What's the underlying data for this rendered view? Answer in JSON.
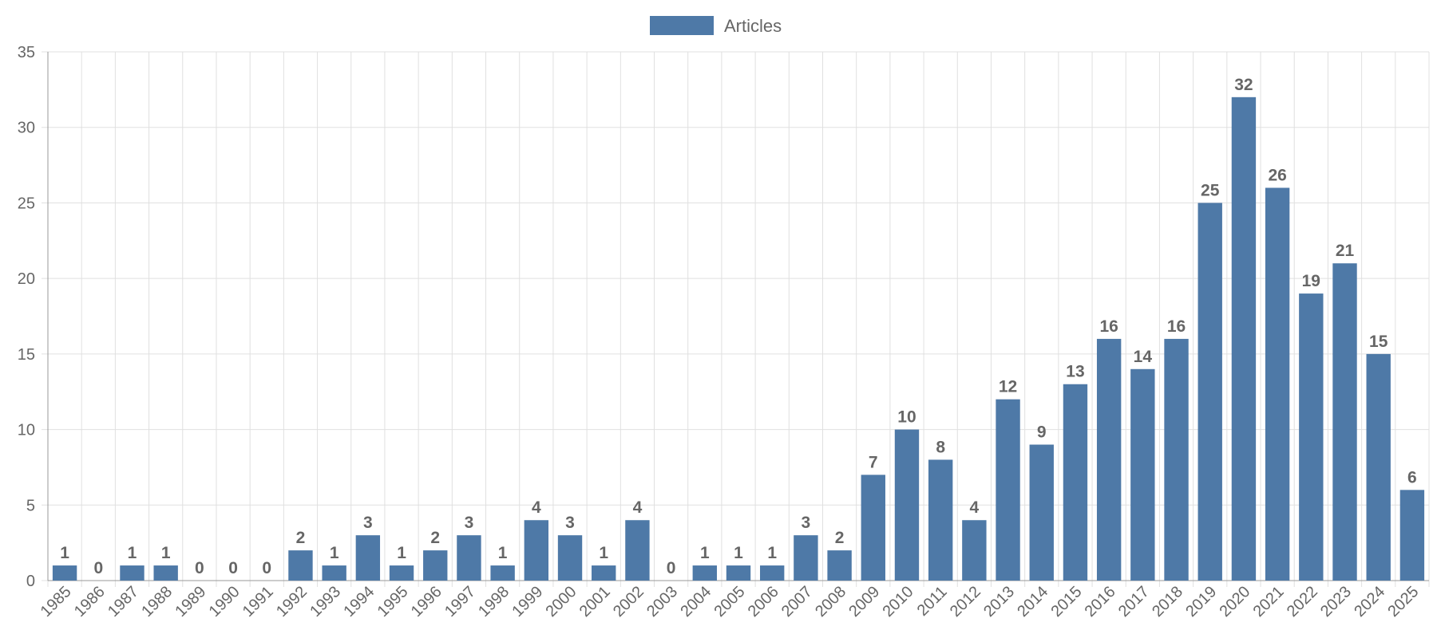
{
  "chart_data": {
    "type": "bar",
    "categories": [
      "1985",
      "1986",
      "1987",
      "1988",
      "1989",
      "1990",
      "1991",
      "1992",
      "1993",
      "1994",
      "1995",
      "1996",
      "1997",
      "1998",
      "1999",
      "2000",
      "2001",
      "2002",
      "2003",
      "2004",
      "2005",
      "2006",
      "2007",
      "2008",
      "2009",
      "2010",
      "2011",
      "2012",
      "2013",
      "2014",
      "2015",
      "2016",
      "2017",
      "2018",
      "2019",
      "2020",
      "2021",
      "2022",
      "2023",
      "2024",
      "2025"
    ],
    "series": [
      {
        "name": "Articles",
        "color": "#4e79a7",
        "values": [
          1,
          0,
          1,
          1,
          0,
          0,
          0,
          2,
          1,
          3,
          1,
          2,
          3,
          1,
          4,
          3,
          1,
          4,
          0,
          1,
          1,
          1,
          3,
          2,
          7,
          10,
          8,
          4,
          12,
          9,
          13,
          16,
          14,
          16,
          25,
          32,
          26,
          19,
          21,
          15,
          6
        ]
      }
    ],
    "ylim": [
      0,
      35
    ],
    "ytick_step": 5,
    "grid": true,
    "legend": "top-center",
    "data_labels": true,
    "xlabel": "",
    "ylabel": "",
    "title": ""
  }
}
